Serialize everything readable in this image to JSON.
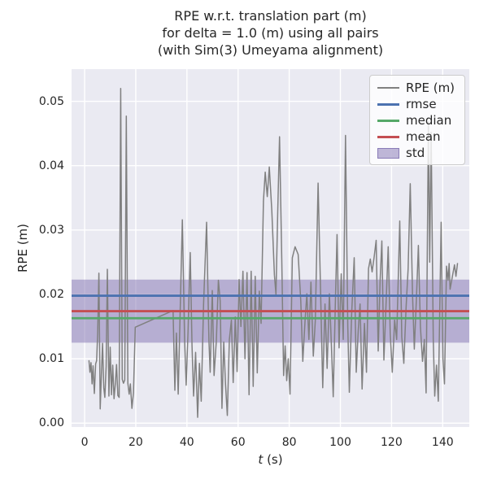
{
  "colors": {
    "figure_bg": "#ffffff",
    "axes_bg": "#eaeaf2",
    "grid": "#ffffff",
    "text": "#262626",
    "rpe_line": "#808080",
    "rmse": "#4C72B0",
    "median": "#55A868",
    "mean": "#C44E52",
    "std_band": "#8172B2"
  },
  "chart_data": {
    "type": "line",
    "title": "RPE w.r.t. translation part (m)\nfor delta = 1.0 (m) using all pairs\n(with Sim(3) Umeyama alignment)",
    "title_lines": [
      "RPE w.r.t. translation part (m)",
      "for delta = 1.0 (m) using all pairs",
      "(with Sim(3) Umeyama alignment)"
    ],
    "xlabel": "t (s)",
    "xlabel_var": "t",
    "xlabel_unit": " (s)",
    "ylabel": "RPE (m)",
    "xlim": [
      -5.1,
      150.4
    ],
    "ylim": [
      -0.0006,
      0.055
    ],
    "xticks": [
      0,
      20,
      40,
      60,
      80,
      100,
      120,
      140
    ],
    "yticks": [
      0,
      0.01,
      0.02,
      0.03,
      0.04,
      0.05
    ],
    "ytick_labels": [
      "0.00",
      "0.01",
      "0.02",
      "0.03",
      "0.04",
      "0.05"
    ],
    "grid": true,
    "legend_position": "upper right",
    "stats": {
      "rmse": 0.0198,
      "mean": 0.0174,
      "median": 0.0163,
      "std": 0.0049,
      "std_band_lower": 0.0125,
      "std_band_upper": 0.0223
    },
    "stat_lines": [
      {
        "name": "rmse",
        "color": "#4C72B0",
        "value": 0.0198
      },
      {
        "name": "median",
        "color": "#55A868",
        "value": 0.0163
      },
      {
        "name": "mean",
        "color": "#C44E52",
        "value": 0.0174
      }
    ],
    "std_band": {
      "name": "std",
      "color": "#8172B2",
      "alpha": 0.5,
      "lower": 0.0125,
      "upper": 0.0223
    },
    "legend_items": [
      {
        "label": "RPE (m)",
        "swatch": "line",
        "color": "#808080",
        "thickness": 2
      },
      {
        "label": "rmse",
        "swatch": "line",
        "color": "#4C72B0",
        "thickness": 3
      },
      {
        "label": "median",
        "swatch": "line",
        "color": "#55A868",
        "thickness": 3
      },
      {
        "label": "mean",
        "swatch": "line",
        "color": "#C44E52",
        "thickness": 3
      },
      {
        "label": "std",
        "swatch": "patch",
        "color": "#8172B2",
        "thickness": 13
      }
    ],
    "series": [
      {
        "name": "RPE (m)",
        "color": "#808080",
        "points": [
          [
            1.7,
            0.0097
          ],
          [
            2.1,
            0.0079
          ],
          [
            2.5,
            0.0094
          ],
          [
            2.9,
            0.0061
          ],
          [
            3.3,
            0.0089
          ],
          [
            3.8,
            0.0046
          ],
          [
            4.3,
            0.0092
          ],
          [
            4.7,
            0.0097
          ],
          [
            5.1,
            0.014
          ],
          [
            5.6,
            0.0233
          ],
          [
            6.1,
            0.0022
          ],
          [
            6.6,
            0.008
          ],
          [
            7.0,
            0.0124
          ],
          [
            7.5,
            0.0055
          ],
          [
            7.9,
            0.004
          ],
          [
            8.4,
            0.0088
          ],
          [
            8.9,
            0.0239
          ],
          [
            9.5,
            0.0042
          ],
          [
            10.0,
            0.0118
          ],
          [
            10.5,
            0.0044
          ],
          [
            11.0,
            0.009
          ],
          [
            11.5,
            0.0038
          ],
          [
            12.0,
            0.0061
          ],
          [
            12.5,
            0.0091
          ],
          [
            13.0,
            0.0043
          ],
          [
            13.5,
            0.004
          ],
          [
            14.1,
            0.052
          ],
          [
            14.7,
            0.0068
          ],
          [
            15.2,
            0.0062
          ],
          [
            15.7,
            0.0067
          ],
          [
            16.3,
            0.0477
          ],
          [
            16.9,
            0.0062
          ],
          [
            17.4,
            0.0045
          ],
          [
            17.9,
            0.0061
          ],
          [
            18.5,
            0.0023
          ],
          [
            19.1,
            0.0047
          ],
          [
            19.8,
            0.0149
          ],
          [
            34.6,
            0.0175
          ],
          [
            35.3,
            0.0051
          ],
          [
            35.9,
            0.014
          ],
          [
            36.6,
            0.0045
          ],
          [
            38.2,
            0.0316
          ],
          [
            39.1,
            0.0128
          ],
          [
            39.7,
            0.0059
          ],
          [
            40.4,
            0.014
          ],
          [
            41.3,
            0.0265
          ],
          [
            42.0,
            0.012
          ],
          [
            42.6,
            0.0042
          ],
          [
            43.4,
            0.011
          ],
          [
            44.2,
            0.0009
          ],
          [
            44.9,
            0.0093
          ],
          [
            45.6,
            0.0034
          ],
          [
            46.5,
            0.0185
          ],
          [
            47.7,
            0.0312
          ],
          [
            48.6,
            0.0128
          ],
          [
            49.1,
            0.0079
          ],
          [
            49.9,
            0.0206
          ],
          [
            50.6,
            0.0074
          ],
          [
            51.5,
            0.0128
          ],
          [
            52.3,
            0.0222
          ],
          [
            53.0,
            0.019
          ],
          [
            53.7,
            0.0023
          ],
          [
            54.4,
            0.0126
          ],
          [
            55.1,
            0.006
          ],
          [
            55.8,
            0.0012
          ],
          [
            56.6,
            0.013
          ],
          [
            57.4,
            0.016
          ],
          [
            58.1,
            0.0063
          ],
          [
            58.9,
            0.0165
          ],
          [
            59.6,
            0.008
          ],
          [
            60.4,
            0.0223
          ],
          [
            61.1,
            0.015
          ],
          [
            61.9,
            0.0236
          ],
          [
            62.7,
            0.01
          ],
          [
            63.5,
            0.0234
          ],
          [
            64.3,
            0.0044
          ],
          [
            65.1,
            0.0236
          ],
          [
            65.9,
            0.0057
          ],
          [
            66.7,
            0.0228
          ],
          [
            67.5,
            0.0078
          ],
          [
            68.3,
            0.0205
          ],
          [
            69.0,
            0.0155
          ],
          [
            69.9,
            0.0345
          ],
          [
            70.6,
            0.039
          ],
          [
            71.4,
            0.0352
          ],
          [
            72.2,
            0.0398
          ],
          [
            73.2,
            0.033
          ],
          [
            74.2,
            0.023
          ],
          [
            74.8,
            0.02
          ],
          [
            75.5,
            0.033
          ],
          [
            76.2,
            0.0445
          ],
          [
            77.1,
            0.025
          ],
          [
            77.8,
            0.0074
          ],
          [
            78.4,
            0.012
          ],
          [
            79.0,
            0.0066
          ],
          [
            79.6,
            0.01
          ],
          [
            80.3,
            0.0045
          ],
          [
            81.2,
            0.0257
          ],
          [
            82.3,
            0.0274
          ],
          [
            83.5,
            0.0262
          ],
          [
            84.5,
            0.019
          ],
          [
            85.3,
            0.0096
          ],
          [
            86.2,
            0.016
          ],
          [
            86.9,
            0.0201
          ],
          [
            87.7,
            0.013
          ],
          [
            88.5,
            0.0219
          ],
          [
            89.4,
            0.0104
          ],
          [
            90.2,
            0.016
          ],
          [
            91.3,
            0.0373
          ],
          [
            92.4,
            0.018
          ],
          [
            93.1,
            0.0055
          ],
          [
            94.0,
            0.0185
          ],
          [
            94.8,
            0.0085
          ],
          [
            95.7,
            0.0201
          ],
          [
            96.5,
            0.012
          ],
          [
            97.2,
            0.0041
          ],
          [
            98.0,
            0.018
          ],
          [
            98.7,
            0.0293
          ],
          [
            99.5,
            0.0117
          ],
          [
            100.3,
            0.0232
          ],
          [
            101.1,
            0.013
          ],
          [
            102.0,
            0.0447
          ],
          [
            102.9,
            0.015
          ],
          [
            103.5,
            0.0048
          ],
          [
            104.4,
            0.0168
          ],
          [
            105.4,
            0.0257
          ],
          [
            106.2,
            0.0079
          ],
          [
            107.0,
            0.0145
          ],
          [
            107.7,
            0.0185
          ],
          [
            108.5,
            0.0053
          ],
          [
            109.4,
            0.0155
          ],
          [
            110.2,
            0.0079
          ],
          [
            111.0,
            0.024
          ],
          [
            111.7,
            0.0255
          ],
          [
            112.4,
            0.0235
          ],
          [
            113.2,
            0.0258
          ],
          [
            114.0,
            0.0284
          ],
          [
            114.8,
            0.0112
          ],
          [
            115.5,
            0.022
          ],
          [
            116.2,
            0.0283
          ],
          [
            117.0,
            0.0098
          ],
          [
            117.9,
            0.019
          ],
          [
            118.7,
            0.0274
          ],
          [
            119.5,
            0.014
          ],
          [
            120.3,
            0.0079
          ],
          [
            121.2,
            0.016
          ],
          [
            122.0,
            0.013
          ],
          [
            123.2,
            0.0314
          ],
          [
            124.0,
            0.0134
          ],
          [
            124.8,
            0.0093
          ],
          [
            125.7,
            0.018
          ],
          [
            126.5,
            0.024
          ],
          [
            127.3,
            0.0372
          ],
          [
            128.2,
            0.02
          ],
          [
            128.9,
            0.0115
          ],
          [
            129.8,
            0.02
          ],
          [
            130.5,
            0.0276
          ],
          [
            131.3,
            0.015
          ],
          [
            132.1,
            0.0096
          ],
          [
            132.8,
            0.013
          ],
          [
            133.5,
            0.0047
          ],
          [
            134.4,
            0.0468
          ],
          [
            134.9,
            0.025
          ],
          [
            135.5,
            0.0452
          ],
          [
            136.3,
            0.013
          ],
          [
            136.9,
            0.0042
          ],
          [
            137.6,
            0.009
          ],
          [
            138.3,
            0.0034
          ],
          [
            139.4,
            0.0312
          ],
          [
            140.1,
            0.01
          ],
          [
            140.7,
            0.0061
          ],
          [
            141.5,
            0.0244
          ],
          [
            142.1,
            0.0222
          ],
          [
            142.5,
            0.0248
          ],
          [
            142.9,
            0.0208
          ],
          [
            144.6,
            0.0246
          ],
          [
            145.2,
            0.0228
          ],
          [
            145.8,
            0.0248
          ]
        ]
      }
    ]
  }
}
